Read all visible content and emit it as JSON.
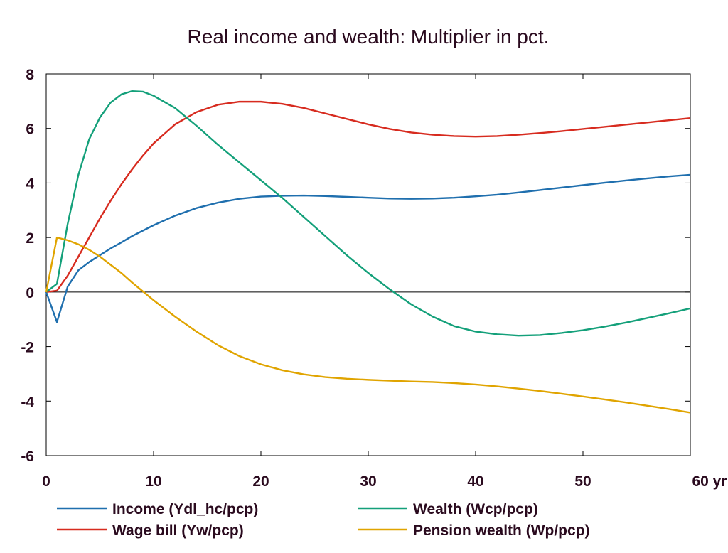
{
  "chart_data": {
    "type": "line",
    "title": "Real income and wealth: Multiplier in pct.",
    "xlabel": "",
    "ylabel": "",
    "x_unit_label": "yr",
    "xlim": [
      0,
      60
    ],
    "ylim": [
      -6,
      8
    ],
    "x_ticks": [
      0,
      10,
      20,
      30,
      40,
      50,
      60
    ],
    "x_tick_labels": [
      "0",
      "10",
      "20",
      "30",
      "40",
      "50",
      "60 yr"
    ],
    "y_ticks": [
      -6,
      -4,
      -2,
      0,
      2,
      4,
      6,
      8
    ],
    "y_tick_labels": [
      "-6",
      "-4",
      "-2",
      "0",
      "2",
      "4",
      "6",
      "8"
    ],
    "grid": false,
    "zero_line": true,
    "legend_position": "bottom",
    "series": [
      {
        "name": "Income (Ydl_hc/pcp)",
        "color": "#1f6fae",
        "points": [
          [
            0,
            0
          ],
          [
            1,
            -1.1
          ],
          [
            2,
            0.2
          ],
          [
            3,
            0.8
          ],
          [
            4,
            1.1
          ],
          [
            5,
            1.35
          ],
          [
            6,
            1.6
          ],
          [
            7,
            1.82
          ],
          [
            8,
            2.05
          ],
          [
            10,
            2.45
          ],
          [
            12,
            2.8
          ],
          [
            14,
            3.08
          ],
          [
            16,
            3.28
          ],
          [
            18,
            3.42
          ],
          [
            20,
            3.5
          ],
          [
            22,
            3.53
          ],
          [
            24,
            3.54
          ],
          [
            26,
            3.52
          ],
          [
            28,
            3.49
          ],
          [
            30,
            3.46
          ],
          [
            32,
            3.43
          ],
          [
            34,
            3.42
          ],
          [
            36,
            3.43
          ],
          [
            38,
            3.46
          ],
          [
            40,
            3.51
          ],
          [
            42,
            3.57
          ],
          [
            44,
            3.65
          ],
          [
            46,
            3.74
          ],
          [
            48,
            3.83
          ],
          [
            50,
            3.92
          ],
          [
            52,
            4.01
          ],
          [
            54,
            4.09
          ],
          [
            56,
            4.17
          ],
          [
            58,
            4.24
          ],
          [
            60,
            4.3
          ]
        ]
      },
      {
        "name": "Wage bill (Yw/pcp)",
        "color": "#d72b1f",
        "points": [
          [
            0,
            0
          ],
          [
            1,
            0.05
          ],
          [
            2,
            0.6
          ],
          [
            3,
            1.3
          ],
          [
            4,
            2.0
          ],
          [
            5,
            2.7
          ],
          [
            6,
            3.35
          ],
          [
            7,
            3.95
          ],
          [
            8,
            4.5
          ],
          [
            9,
            5.0
          ],
          [
            10,
            5.45
          ],
          [
            12,
            6.15
          ],
          [
            14,
            6.6
          ],
          [
            16,
            6.87
          ],
          [
            18,
            6.98
          ],
          [
            20,
            6.98
          ],
          [
            22,
            6.9
          ],
          [
            24,
            6.75
          ],
          [
            26,
            6.55
          ],
          [
            28,
            6.35
          ],
          [
            30,
            6.15
          ],
          [
            32,
            5.98
          ],
          [
            34,
            5.85
          ],
          [
            36,
            5.77
          ],
          [
            38,
            5.72
          ],
          [
            40,
            5.7
          ],
          [
            42,
            5.72
          ],
          [
            44,
            5.77
          ],
          [
            46,
            5.83
          ],
          [
            48,
            5.9
          ],
          [
            50,
            5.98
          ],
          [
            52,
            6.06
          ],
          [
            54,
            6.14
          ],
          [
            56,
            6.22
          ],
          [
            58,
            6.3
          ],
          [
            60,
            6.38
          ]
        ]
      },
      {
        "name": "Wealth (Wcp/pcp)",
        "color": "#14a07a",
        "points": [
          [
            0,
            0
          ],
          [
            1,
            0.3
          ],
          [
            2,
            2.5
          ],
          [
            3,
            4.3
          ],
          [
            4,
            5.6
          ],
          [
            5,
            6.4
          ],
          [
            6,
            6.95
          ],
          [
            7,
            7.25
          ],
          [
            8,
            7.37
          ],
          [
            9,
            7.35
          ],
          [
            10,
            7.2
          ],
          [
            12,
            6.75
          ],
          [
            14,
            6.1
          ],
          [
            16,
            5.4
          ],
          [
            18,
            4.75
          ],
          [
            20,
            4.1
          ],
          [
            22,
            3.45
          ],
          [
            24,
            2.75
          ],
          [
            26,
            2.05
          ],
          [
            28,
            1.35
          ],
          [
            30,
            0.7
          ],
          [
            32,
            0.1
          ],
          [
            34,
            -0.45
          ],
          [
            36,
            -0.9
          ],
          [
            38,
            -1.25
          ],
          [
            40,
            -1.45
          ],
          [
            42,
            -1.55
          ],
          [
            44,
            -1.6
          ],
          [
            46,
            -1.58
          ],
          [
            48,
            -1.5
          ],
          [
            50,
            -1.4
          ],
          [
            52,
            -1.27
          ],
          [
            54,
            -1.12
          ],
          [
            56,
            -0.95
          ],
          [
            58,
            -0.78
          ],
          [
            60,
            -0.6
          ]
        ]
      },
      {
        "name": "Pension wealth (Wp/pcp)",
        "color": "#e0a400",
        "points": [
          [
            0,
            0
          ],
          [
            1,
            2.0
          ],
          [
            2,
            1.9
          ],
          [
            3,
            1.75
          ],
          [
            4,
            1.55
          ],
          [
            5,
            1.3
          ],
          [
            6,
            1.0
          ],
          [
            7,
            0.7
          ],
          [
            8,
            0.35
          ],
          [
            10,
            -0.3
          ],
          [
            12,
            -0.9
          ],
          [
            14,
            -1.45
          ],
          [
            16,
            -1.95
          ],
          [
            18,
            -2.35
          ],
          [
            20,
            -2.65
          ],
          [
            22,
            -2.87
          ],
          [
            24,
            -3.02
          ],
          [
            26,
            -3.12
          ],
          [
            28,
            -3.18
          ],
          [
            30,
            -3.22
          ],
          [
            32,
            -3.25
          ],
          [
            34,
            -3.28
          ],
          [
            36,
            -3.3
          ],
          [
            38,
            -3.34
          ],
          [
            40,
            -3.39
          ],
          [
            42,
            -3.46
          ],
          [
            44,
            -3.54
          ],
          [
            46,
            -3.63
          ],
          [
            48,
            -3.73
          ],
          [
            50,
            -3.83
          ],
          [
            52,
            -3.94
          ],
          [
            54,
            -4.05
          ],
          [
            56,
            -4.17
          ],
          [
            58,
            -4.29
          ],
          [
            60,
            -4.42
          ]
        ]
      }
    ]
  }
}
